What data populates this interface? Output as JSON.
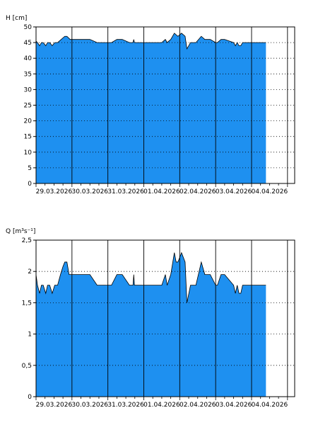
{
  "chart_data": [
    {
      "type": "area",
      "ylabel": "H [cm]",
      "ylim": [
        0,
        50
      ],
      "yticks": [
        "0",
        "5",
        "10",
        "15",
        "20",
        "25",
        "30",
        "35",
        "40",
        "45",
        "50"
      ],
      "yticks_values": [
        0,
        5,
        10,
        15,
        20,
        25,
        30,
        35,
        40,
        45,
        50
      ],
      "xlim": [
        0,
        7.2
      ],
      "xticks": [
        "29.03.2026",
        "30.03.2026",
        "31.03.2026",
        "01.04.2026",
        "02.04.2026",
        "03.04.2026",
        "04.04.2026"
      ],
      "grid": "dotted-horizontal, solid-vertical-at-midnight",
      "fill_color": "#1e90f0",
      "series": [
        {
          "x": [
            0,
            0.04,
            0.1,
            0.15,
            0.2,
            0.27,
            0.32,
            0.38,
            0.45,
            0.52,
            0.6,
            0.7,
            0.8,
            0.86,
            0.95,
            1.0,
            1.5,
            1.7,
            1.9,
            2.1,
            2.25,
            2.4,
            2.6,
            2.7,
            2.72,
            2.74,
            3.0,
            3.5,
            3.6,
            3.65,
            3.75,
            3.85,
            3.95,
            4.05,
            4.15,
            4.2,
            4.3,
            4.45,
            4.6,
            4.7,
            4.85,
            5.0,
            5.05,
            5.15,
            5.25,
            5.5,
            5.55,
            5.6,
            5.65,
            5.7,
            5.75,
            6.0,
            6.4
          ],
          "y": [
            45.5,
            45,
            44,
            45,
            45,
            44,
            45,
            45,
            44,
            45,
            45,
            46,
            47,
            47,
            46,
            46,
            46,
            45,
            45,
            45,
            46,
            46,
            45,
            45,
            46,
            45,
            45,
            45,
            46,
            45,
            46,
            48,
            47,
            48,
            47,
            43,
            45,
            45,
            47,
            46,
            46,
            45,
            45,
            46,
            46,
            45,
            44,
            45,
            44,
            44,
            45,
            45,
            45
          ]
        }
      ]
    },
    {
      "type": "area",
      "ylabel": "Q [m³s⁻¹]",
      "ylim": [
        0,
        2.5
      ],
      "yticks": [
        "0",
        "0,5",
        "1",
        "1,5",
        "2",
        "2,5"
      ],
      "yticks_values": [
        0,
        0.5,
        1,
        1.5,
        2,
        2.5
      ],
      "xlim": [
        0,
        7.2
      ],
      "xticks": [
        "29.03.2026",
        "30.03.2026",
        "31.03.2026",
        "01.04.2026",
        "02.04.2026",
        "03.04.2026",
        "04.04.2026"
      ],
      "grid": "dotted-horizontal, solid-vertical-at-midnight",
      "fill_color": "#1e90f0",
      "series": [
        {
          "x": [
            0,
            0.04,
            0.1,
            0.15,
            0.2,
            0.27,
            0.32,
            0.38,
            0.45,
            0.52,
            0.6,
            0.68,
            0.75,
            0.8,
            0.86,
            0.92,
            1.0,
            1.5,
            1.7,
            1.9,
            2.1,
            2.25,
            2.4,
            2.6,
            2.7,
            2.72,
            2.74,
            3.0,
            3.5,
            3.6,
            3.65,
            3.75,
            3.85,
            3.9,
            3.95,
            4.05,
            4.15,
            4.2,
            4.3,
            4.45,
            4.6,
            4.7,
            4.85,
            5.0,
            5.05,
            5.15,
            5.25,
            5.5,
            5.55,
            5.6,
            5.65,
            5.7,
            5.75,
            6.0,
            6.4
          ],
          "y": [
            1.95,
            1.78,
            1.65,
            1.78,
            1.78,
            1.65,
            1.78,
            1.78,
            1.65,
            1.78,
            1.78,
            1.95,
            2.08,
            2.15,
            2.15,
            1.95,
            1.95,
            1.95,
            1.78,
            1.78,
            1.78,
            1.95,
            1.95,
            1.78,
            1.78,
            1.95,
            1.78,
            1.78,
            1.78,
            1.95,
            1.78,
            1.95,
            2.3,
            2.15,
            2.15,
            2.3,
            2.15,
            1.5,
            1.78,
            1.78,
            2.15,
            1.95,
            1.95,
            1.78,
            1.78,
            1.95,
            1.95,
            1.78,
            1.65,
            1.78,
            1.65,
            1.65,
            1.78,
            1.78,
            1.78
          ]
        }
      ]
    }
  ]
}
